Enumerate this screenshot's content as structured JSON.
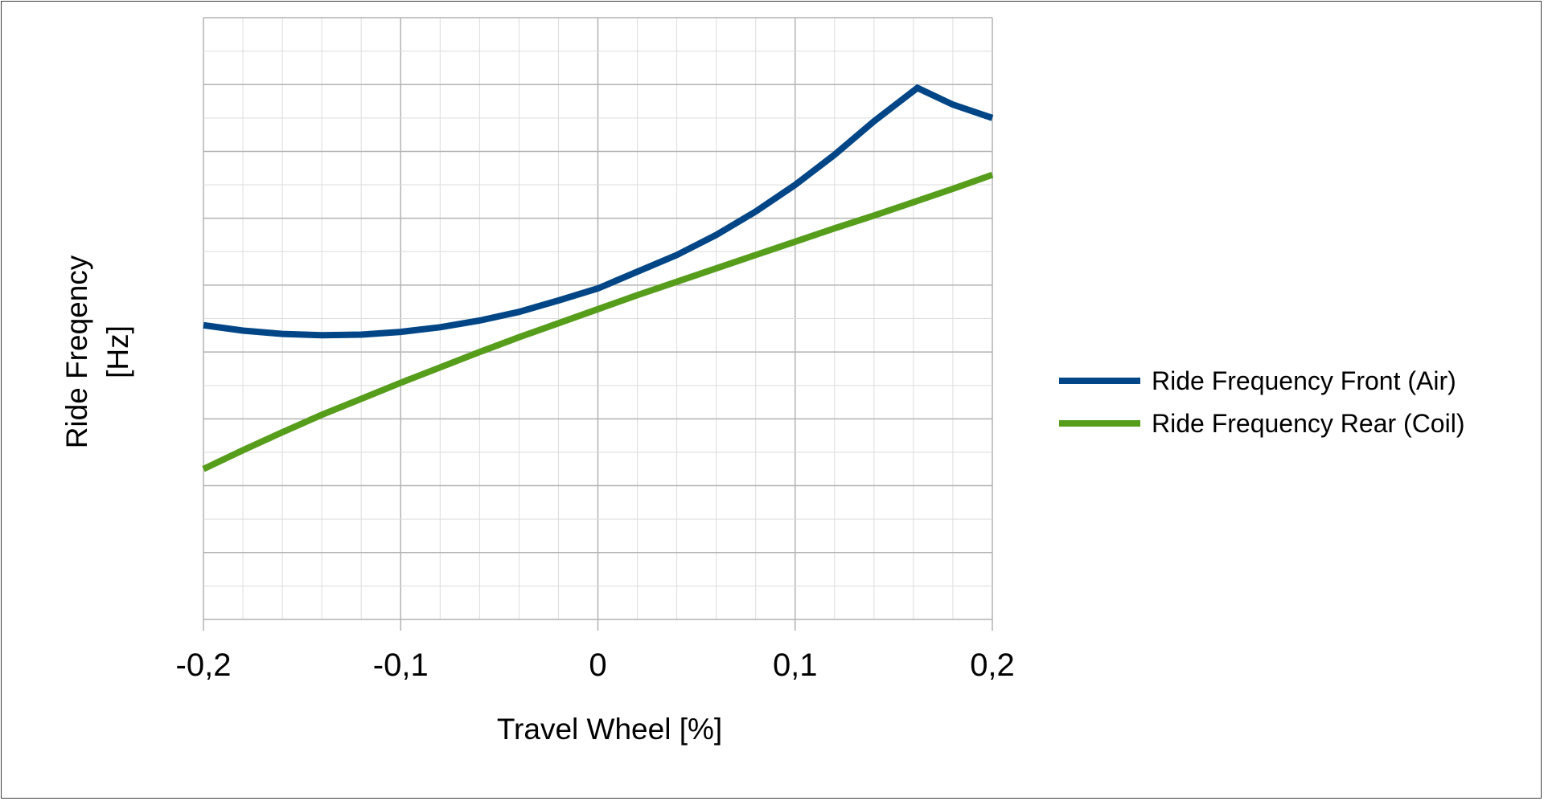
{
  "chart_data": {
    "type": "line",
    "title": "",
    "xlabel": "Travel Wheel [%]",
    "ylabel": "Ride Freqency",
    "ylabel_unit": "[Hz]",
    "xlim": [
      -0.2,
      0.2
    ],
    "ylim": [
      0,
      9
    ],
    "x_ticks": [
      -0.2,
      -0.1,
      0,
      0.1,
      0.2
    ],
    "x_tick_labels": [
      "-0,2",
      "-0,1",
      "0",
      "0,1",
      "0,2"
    ],
    "y_tick_labels": [],
    "grid": true,
    "legend_position": "right",
    "series": [
      {
        "name": "Ride Frequency Front (Air)",
        "color": "#004586",
        "x": [
          -0.2,
          -0.18,
          -0.16,
          -0.14,
          -0.12,
          -0.1,
          -0.08,
          -0.06,
          -0.04,
          -0.02,
          0,
          0.02,
          0.04,
          0.06,
          0.08,
          0.1,
          0.12,
          0.14,
          0.162,
          0.18,
          0.2
        ],
        "y": [
          4.4,
          4.32,
          4.27,
          4.25,
          4.26,
          4.3,
          4.37,
          4.47,
          4.6,
          4.77,
          4.95,
          5.2,
          5.45,
          5.75,
          6.1,
          6.5,
          6.95,
          7.45,
          7.95,
          7.7,
          7.5
        ]
      },
      {
        "name": "Ride Frequency Rear (Coil)",
        "color": "#579d1c",
        "x": [
          -0.2,
          -0.18,
          -0.16,
          -0.14,
          -0.12,
          -0.1,
          -0.08,
          -0.06,
          -0.04,
          -0.02,
          0,
          0.02,
          0.04,
          0.06,
          0.08,
          0.1,
          0.12,
          0.14,
          0.16,
          0.18,
          0.2
        ],
        "y": [
          2.25,
          2.53,
          2.8,
          3.06,
          3.3,
          3.54,
          3.77,
          4.0,
          4.22,
          4.43,
          4.64,
          4.85,
          5.05,
          5.25,
          5.45,
          5.65,
          5.85,
          6.04,
          6.24,
          6.44,
          6.65
        ]
      }
    ]
  }
}
